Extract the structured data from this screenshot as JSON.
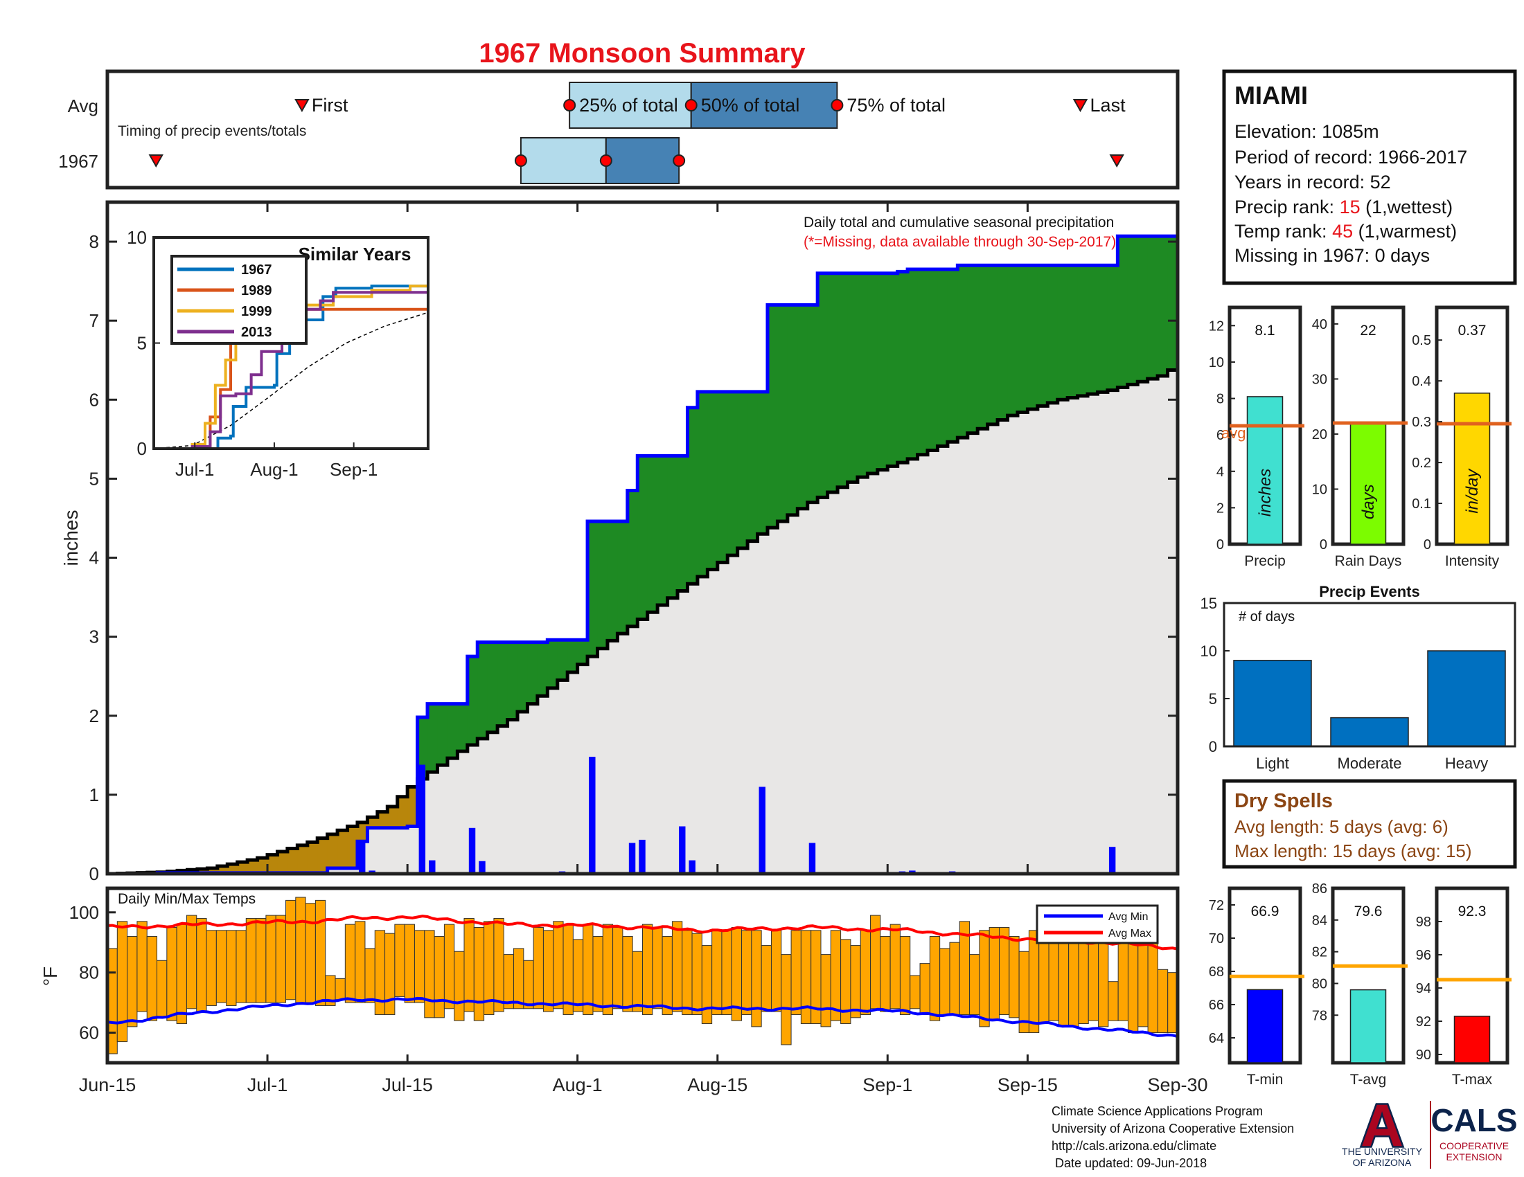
{
  "title": "1967 Monsoon Summary",
  "colors": {
    "title": "#e8141b",
    "cum_line": "#0000ff",
    "surplus_fill": "#1e8a23",
    "deficit_fill": "#b8860b",
    "avg_fill": "#e8e7e6",
    "daily_bars": "#0000ff",
    "temp_bars": "#ffa500",
    "avg_min": "#0000ff",
    "avg_max": "#ff0000",
    "q_light": "#b3dbeb",
    "q_dark": "#4682b4",
    "marker": "#ff0000",
    "avg_line": "#e0621f",
    "precip_bar": "#40e0d0",
    "raindays_bar": "#7cfc00",
    "intensity_bar": "#ffd700",
    "events_bar": "#0070c0",
    "tmin_bar": "#0000ff",
    "tavg_bar": "#40e0d0",
    "tmax_bar": "#ff0000",
    "temp_avg_line": "#ffa500",
    "dry_spell_text": "#8b4513",
    "ua_red": "#ab0520",
    "ua_navy": "#0c234b"
  },
  "timing": {
    "row_avg_label": "Avg",
    "row_year_label": "1967",
    "first_label": "First",
    "last_label": "Last",
    "q25_label": "25% of total",
    "q50_label": "50% of total",
    "q75_label": "75% of total",
    "note": "Timing of precip events/totals",
    "avg": {
      "first": 16,
      "q25": 38,
      "q50": 48,
      "q75": 60,
      "last": 80
    },
    "year": {
      "first": 4,
      "q25": 34,
      "q50": 41,
      "q75": 47,
      "last": 83
    },
    "xlim": [
      0,
      88
    ]
  },
  "station": {
    "name": "MIAMI",
    "elevation": "Elevation: 1085m",
    "period": "Period of record: 1966-2017",
    "years": "Years in record: 52",
    "precip_rank_label": "Precip rank: ",
    "precip_rank_value": "15",
    "precip_rank_note": " (1,wettest)",
    "temp_rank_label": "Temp rank: ",
    "temp_rank_value": "45",
    "temp_rank_note": " (1,warmest)",
    "missing": "Missing in 1967: 0 days"
  },
  "main": {
    "caption": "Daily total and cumulative seasonal precipitation",
    "missing_note": "(*=Missing, data available through 30-Sep-2017)",
    "ylabel": "inches",
    "yticks": [
      0,
      1,
      2,
      3,
      4,
      5,
      6,
      7,
      8
    ],
    "ylim": [
      0,
      8.5
    ],
    "xticks": [
      {
        "label": "Jun-15",
        "day": 0
      },
      {
        "label": "Jul-1",
        "day": 16
      },
      {
        "label": "Jul-15",
        "day": 30
      },
      {
        "label": "Aug-1",
        "day": 47
      },
      {
        "label": "Aug-15",
        "day": 61
      },
      {
        "label": "Sep-1",
        "day": 78
      },
      {
        "label": "Sep-15",
        "day": 92
      },
      {
        "label": "Sep-30",
        "day": 107
      }
    ]
  },
  "chart_data": {
    "type": "area",
    "xlim_days": [
      0,
      107
    ],
    "ylim": [
      0,
      8.5
    ],
    "cumulative_1967": [
      [
        0,
        0
      ],
      [
        5,
        0.01
      ],
      [
        15,
        0.01
      ],
      [
        21,
        0.01
      ],
      [
        22,
        0.07
      ],
      [
        25,
        0.41
      ],
      [
        26,
        0.58
      ],
      [
        30,
        0.6
      ],
      [
        31,
        1.98
      ],
      [
        32,
        2.15
      ],
      [
        35,
        2.15
      ],
      [
        36,
        2.75
      ],
      [
        37,
        2.93
      ],
      [
        44,
        2.96
      ],
      [
        47,
        2.96
      ],
      [
        48,
        4.46
      ],
      [
        51,
        4.46
      ],
      [
        52,
        4.85
      ],
      [
        53,
        5.29
      ],
      [
        57,
        5.29
      ],
      [
        58,
        5.9
      ],
      [
        59,
        6.1
      ],
      [
        65,
        6.1
      ],
      [
        66,
        7.2
      ],
      [
        70,
        7.2
      ],
      [
        71,
        7.6
      ],
      [
        78,
        7.6
      ],
      [
        79,
        7.62
      ],
      [
        80,
        7.65
      ],
      [
        84,
        7.65
      ],
      [
        85,
        7.7
      ],
      [
        100,
        7.7
      ],
      [
        101,
        8.07
      ],
      [
        107,
        8.07
      ]
    ],
    "cumulative_average": [
      [
        0,
        0
      ],
      [
        5,
        0.02
      ],
      [
        10,
        0.07
      ],
      [
        15,
        0.2
      ],
      [
        20,
        0.4
      ],
      [
        25,
        0.65
      ],
      [
        28,
        0.85
      ],
      [
        30,
        1.1
      ],
      [
        31,
        1.2
      ],
      [
        35,
        1.55
      ],
      [
        40,
        1.95
      ],
      [
        45,
        2.45
      ],
      [
        50,
        2.95
      ],
      [
        55,
        3.4
      ],
      [
        60,
        3.85
      ],
      [
        65,
        4.3
      ],
      [
        70,
        4.7
      ],
      [
        75,
        5.02
      ],
      [
        80,
        5.25
      ],
      [
        85,
        5.52
      ],
      [
        90,
        5.8
      ],
      [
        95,
        6.0
      ],
      [
        100,
        6.12
      ],
      [
        105,
        6.3
      ],
      [
        107,
        6.45
      ]
    ],
    "daily_bars": [
      {
        "day": 25,
        "value": 0.42
      },
      {
        "day": 26,
        "value": 0.04
      },
      {
        "day": 31,
        "value": 1.38
      },
      {
        "day": 32,
        "value": 0.17
      },
      {
        "day": 36,
        "value": 0.58
      },
      {
        "day": 37,
        "value": 0.16
      },
      {
        "day": 45,
        "value": 0.03
      },
      {
        "day": 48,
        "value": 1.48
      },
      {
        "day": 52,
        "value": 0.39
      },
      {
        "day": 53,
        "value": 0.43
      },
      {
        "day": 57,
        "value": 0.6
      },
      {
        "day": 58,
        "value": 0.17
      },
      {
        "day": 65,
        "value": 1.1
      },
      {
        "day": 70,
        "value": 0.39
      },
      {
        "day": 79,
        "value": 0.03
      },
      {
        "day": 80,
        "value": 0.04
      },
      {
        "day": 84,
        "value": 0.03
      },
      {
        "day": 100,
        "value": 0.34
      }
    ]
  },
  "inset": {
    "title": "Similar Years",
    "yticks": [
      0,
      5,
      10
    ],
    "ylim": [
      0,
      10
    ],
    "xticks": [
      {
        "label": "Jul-1",
        "day": 16
      },
      {
        "label": "Aug-1",
        "day": 47
      },
      {
        "label": "Sep-1",
        "day": 78
      }
    ],
    "xlim": [
      0,
      107
    ],
    "series": [
      {
        "name": "1967",
        "color": "#0072bd",
        "points": [
          [
            0,
            0
          ],
          [
            25,
            0.5
          ],
          [
            30,
            0.6
          ],
          [
            31,
            2
          ],
          [
            36,
            2.9
          ],
          [
            47,
            3
          ],
          [
            48,
            4.5
          ],
          [
            53,
            5.3
          ],
          [
            58,
            6.1
          ],
          [
            66,
            7.2
          ],
          [
            71,
            7.6
          ],
          [
            85,
            7.7
          ],
          [
            107,
            7.8
          ]
        ]
      },
      {
        "name": "1989",
        "color": "#d95319",
        "points": [
          [
            0,
            0
          ],
          [
            18,
            0.1
          ],
          [
            22,
            1.5
          ],
          [
            26,
            2.8
          ],
          [
            30,
            5.2
          ],
          [
            32,
            6
          ],
          [
            40,
            6.5
          ],
          [
            48,
            6.6
          ],
          [
            60,
            6.6
          ],
          [
            107,
            6.5
          ]
        ]
      },
      {
        "name": "1999",
        "color": "#edb120",
        "points": [
          [
            0,
            0
          ],
          [
            15,
            0.2
          ],
          [
            20,
            1.2
          ],
          [
            24,
            3
          ],
          [
            28,
            4.2
          ],
          [
            32,
            5.8
          ],
          [
            38,
            6.2
          ],
          [
            45,
            6.3
          ],
          [
            55,
            6.8
          ],
          [
            70,
            7.2
          ],
          [
            85,
            7.5
          ],
          [
            100,
            7.7
          ],
          [
            107,
            8
          ]
        ]
      },
      {
        "name": "2013",
        "color": "#7e2f8e",
        "points": [
          [
            0,
            0
          ],
          [
            15,
            0.1
          ],
          [
            22,
            0.8
          ],
          [
            26,
            2.5
          ],
          [
            32,
            2.6
          ],
          [
            38,
            3.5
          ],
          [
            42,
            4.6
          ],
          [
            50,
            5.8
          ],
          [
            58,
            6.6
          ],
          [
            65,
            7
          ],
          [
            70,
            7.4
          ],
          [
            80,
            7.4
          ],
          [
            107,
            7.4
          ]
        ]
      }
    ],
    "average": [
      [
        0,
        0
      ],
      [
        15,
        0.15
      ],
      [
        30,
        1.1
      ],
      [
        45,
        2.45
      ],
      [
        60,
        3.85
      ],
      [
        75,
        5.0
      ],
      [
        90,
        5.8
      ],
      [
        107,
        6.45
      ]
    ]
  },
  "temps": {
    "title": "Daily Min/Max Temps",
    "ylabel": "°F",
    "yticks": [
      60,
      80,
      100
    ],
    "ylim": [
      50,
      108
    ],
    "legend_min": "Avg Min",
    "legend_max": "Avg Max",
    "max": [
      88,
      97,
      92,
      97,
      92,
      84,
      95,
      96,
      99,
      98,
      94,
      94,
      94,
      94,
      98,
      98,
      99,
      99,
      104,
      105,
      103,
      104,
      79,
      78,
      96,
      97,
      88,
      94,
      93,
      96,
      96,
      94,
      94,
      92,
      96,
      87,
      98,
      95,
      97,
      98,
      86,
      88,
      84,
      95,
      94,
      97,
      96,
      91,
      96,
      92,
      96,
      95,
      92,
      87,
      96,
      95,
      92,
      97,
      94,
      93,
      89,
      94,
      94,
      95,
      94,
      94,
      89,
      94,
      86,
      94,
      94,
      94,
      86,
      94,
      91,
      89,
      94,
      99,
      92,
      96,
      92,
      79,
      83,
      92,
      88,
      90,
      97,
      86,
      94,
      95,
      95,
      92,
      87,
      94,
      94,
      91,
      91,
      93,
      92,
      95,
      96,
      77,
      90,
      91,
      94,
      92,
      81,
      80
    ],
    "min": [
      53,
      57,
      62,
      67,
      64,
      65,
      64,
      63,
      68,
      67,
      69,
      70,
      69,
      70,
      70,
      70,
      70,
      70,
      71,
      70,
      70,
      69,
      69,
      71,
      70,
      70,
      70,
      66,
      66,
      72,
      70,
      70,
      65,
      65,
      68,
      64,
      67,
      64,
      66,
      67,
      68,
      68,
      68,
      68,
      67,
      68,
      66,
      67,
      66,
      67,
      66,
      68,
      67,
      67,
      66,
      68,
      66,
      67,
      66,
      66,
      63,
      66,
      66,
      64,
      66,
      62,
      67,
      67,
      56,
      66,
      63,
      63,
      62,
      64,
      63,
      65,
      66,
      68,
      67,
      68,
      66,
      68,
      66,
      64,
      66,
      66,
      66,
      66,
      62,
      64,
      66,
      65,
      60,
      60,
      63,
      64,
      62,
      62,
      63,
      64,
      62,
      64,
      64,
      60,
      62,
      60,
      60,
      60
    ],
    "avg_max": [
      [
        0,
        95
      ],
      [
        10,
        96
      ],
      [
        20,
        97
      ],
      [
        25,
        98
      ],
      [
        30,
        98.5
      ],
      [
        40,
        96
      ],
      [
        50,
        95.5
      ],
      [
        60,
        94
      ],
      [
        70,
        95
      ],
      [
        80,
        94
      ],
      [
        90,
        91.5
      ],
      [
        100,
        90
      ],
      [
        107,
        88
      ]
    ],
    "avg_min": [
      [
        0,
        63
      ],
      [
        10,
        67
      ],
      [
        20,
        70
      ],
      [
        25,
        71
      ],
      [
        30,
        71
      ],
      [
        40,
        70
      ],
      [
        50,
        69
      ],
      [
        60,
        68
      ],
      [
        70,
        68
      ],
      [
        80,
        67
      ],
      [
        90,
        64
      ],
      [
        100,
        61
      ],
      [
        107,
        59
      ]
    ]
  },
  "xaxis": {
    "labels": [
      "Jun-15",
      "Jul-1",
      "Jul-15",
      "Aug-1",
      "Aug-15",
      "Sep-1",
      "Sep-15",
      "Sep-30"
    ]
  },
  "summary_bars": [
    {
      "label": "Precip",
      "value": 8.1,
      "value_text": "8.1",
      "avg": 6.5,
      "avg_text": "avg",
      "unit": "inches",
      "ylim": [
        0,
        13
      ],
      "yticks": [
        0,
        2,
        4,
        6,
        8,
        10,
        12
      ]
    },
    {
      "label": "Rain Days",
      "value": 22,
      "value_text": "22",
      "avg": 22,
      "unit": "days",
      "ylim": [
        0,
        43
      ],
      "yticks": [
        0,
        10,
        20,
        30,
        40
      ]
    },
    {
      "label": "Intensity",
      "value": 0.37,
      "value_text": "0.37",
      "avg": 0.295,
      "unit": "in/day",
      "ylim": [
        0,
        0.58
      ],
      "yticks": [
        0,
        0.1,
        0.2,
        0.3,
        0.4,
        0.5
      ]
    }
  ],
  "events": {
    "title": "Precip Events",
    "note": "# of days",
    "ylim": [
      0,
      15
    ],
    "yticks": [
      0,
      5,
      10,
      15
    ],
    "categories": [
      "Light",
      "Moderate",
      "Heavy"
    ],
    "values": [
      9,
      3,
      10
    ]
  },
  "dry_spells": {
    "title": "Dry Spells",
    "avg": "Avg length: 5 days (avg: 6)",
    "max": "Max length: 15 days (avg: 15)"
  },
  "temp_bars": [
    {
      "label": "T-min",
      "value": 66.9,
      "value_text": "66.9",
      "avg": 67.7,
      "ylim": [
        62.5,
        73
      ],
      "yticks": [
        64,
        66,
        68,
        70,
        72
      ]
    },
    {
      "label": "T-avg",
      "value": 79.6,
      "value_text": "79.6",
      "avg": 81.1,
      "ylim": [
        75,
        86
      ],
      "yticks": [
        78,
        80,
        82,
        84,
        86
      ]
    },
    {
      "label": "T-max",
      "value": 92.3,
      "value_text": "92.3",
      "avg": 94.5,
      "ylim": [
        89.5,
        100
      ],
      "yticks": [
        90,
        92,
        94,
        96,
        98
      ]
    }
  ],
  "footer": {
    "line1": "Climate Science Applications Program",
    "line2": "University of Arizona Cooperative Extension",
    "line3": "http://cals.arizona.edu/climate",
    "line4": " Date updated: 09-Jun-2018"
  },
  "logos": {
    "ua_letter": "A",
    "ua_line1": "THE UNIVERSITY",
    "ua_line2": "OF ARIZONA",
    "cals": "CALS",
    "cals_line1": "COOPERATIVE",
    "cals_line2": "EXTENSION"
  }
}
